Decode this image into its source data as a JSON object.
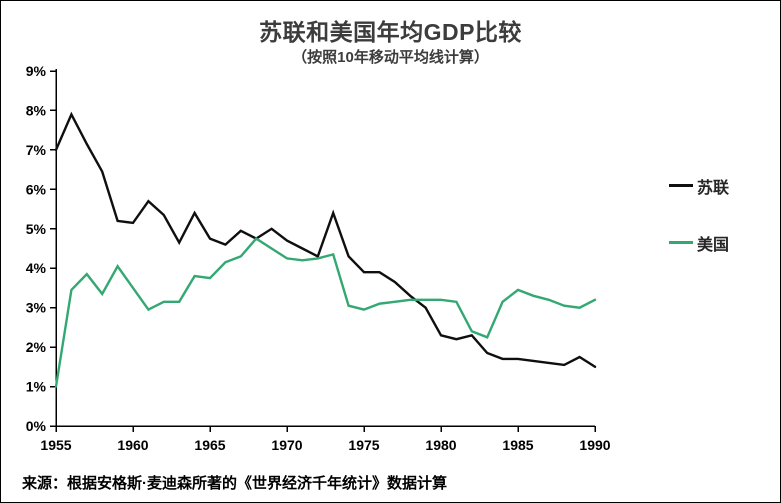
{
  "page": {
    "background": "#ffffff",
    "border_color": "#000000"
  },
  "chart_data": {
    "type": "line",
    "title": "苏联和美国年均GDP比较",
    "subtitle": "（按照10年移动平均线计算）",
    "x": [
      1955,
      1956,
      1957,
      1958,
      1959,
      1960,
      1961,
      1962,
      1963,
      1964,
      1965,
      1966,
      1967,
      1968,
      1969,
      1970,
      1971,
      1972,
      1973,
      1974,
      1975,
      1976,
      1977,
      1978,
      1979,
      1980,
      1981,
      1982,
      1983,
      1984,
      1985,
      1986,
      1987,
      1988,
      1989,
      1990
    ],
    "x_tick_labels": [
      "1955",
      "1960",
      "1965",
      "1970",
      "1975",
      "1980",
      "1985",
      "1990"
    ],
    "y_tick_labels": [
      "0%",
      "1%",
      "2%",
      "3%",
      "4%",
      "5%",
      "6%",
      "7%",
      "8%",
      "9%"
    ],
    "ylim": [
      0,
      9
    ],
    "y_unit": "percent",
    "grid": false,
    "legend_position": "right",
    "series": [
      {
        "name": "苏联",
        "color": "#0f0f0f",
        "values": [
          7.0,
          7.9,
          7.15,
          6.45,
          5.2,
          5.15,
          5.7,
          5.35,
          4.65,
          5.4,
          4.75,
          4.6,
          4.95,
          4.75,
          5.0,
          4.7,
          4.5,
          4.3,
          5.4,
          4.3,
          3.9,
          3.9,
          3.65,
          3.3,
          3.0,
          2.3,
          2.2,
          2.3,
          1.85,
          1.7,
          1.7,
          1.65,
          1.6,
          1.55,
          1.75,
          1.5
        ]
      },
      {
        "name": "美国",
        "color": "#34a873",
        "values": [
          1.0,
          3.45,
          3.85,
          3.35,
          4.05,
          3.5,
          2.95,
          3.15,
          3.15,
          3.8,
          3.75,
          4.15,
          4.3,
          4.75,
          4.5,
          4.25,
          4.2,
          4.25,
          4.35,
          3.05,
          2.95,
          3.1,
          3.15,
          3.2,
          3.2,
          3.2,
          3.15,
          2.4,
          2.25,
          3.15,
          3.45,
          3.3,
          3.2,
          3.05,
          3.0,
          3.2
        ]
      }
    ],
    "source_note": "来源：根据安格斯·麦迪森所著的《世界经济千年统计》数据计算"
  }
}
